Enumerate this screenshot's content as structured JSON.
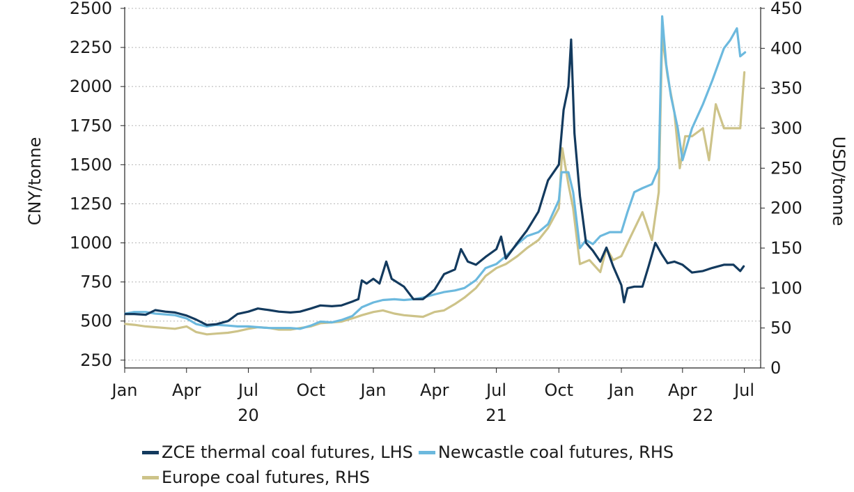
{
  "chart_data": {
    "type": "line",
    "left_axis": {
      "label": "CNY/tonne",
      "ylim": [
        200,
        2500
      ],
      "ticks": [
        250,
        500,
        750,
        1000,
        1250,
        1500,
        1750,
        2000,
        2250,
        2500
      ]
    },
    "right_axis": {
      "label": "USD/tonne",
      "ylim": [
        0,
        450
      ],
      "ticks": [
        0,
        50,
        100,
        150,
        200,
        250,
        300,
        350,
        400,
        450
      ]
    },
    "x_ticks": [
      {
        "date": "2020-01-01",
        "label": "Jan"
      },
      {
        "date": "2020-04-01",
        "label": "Apr"
      },
      {
        "date": "2020-07-01",
        "label": "Jul"
      },
      {
        "date": "2020-10-01",
        "label": "Oct"
      },
      {
        "date": "2021-01-01",
        "label": "Jan"
      },
      {
        "date": "2021-04-01",
        "label": "Apr"
      },
      {
        "date": "2021-07-01",
        "label": "Jul"
      },
      {
        "date": "2021-10-01",
        "label": "Oct"
      },
      {
        "date": "2022-01-01",
        "label": "Jan"
      },
      {
        "date": "2022-04-01",
        "label": "Apr"
      },
      {
        "date": "2022-07-01",
        "label": "Jul"
      }
    ],
    "year_labels": [
      {
        "date": "2020-07-01",
        "label": "20"
      },
      {
        "date": "2021-07-01",
        "label": "21"
      },
      {
        "date": "2022-05-01",
        "label": "22"
      }
    ],
    "xlim": [
      "2020-01-01",
      "2022-07-25"
    ],
    "grid": "horizontal dotted",
    "legend_position": "bottom",
    "series": [
      {
        "name": "ZCE thermal coal futures, LHS",
        "axis": "left",
        "color": "#133a5e",
        "points": [
          [
            "2020-01-02",
            545
          ],
          [
            "2020-01-15",
            545
          ],
          [
            "2020-02-01",
            540
          ],
          [
            "2020-02-15",
            570
          ],
          [
            "2020-03-01",
            560
          ],
          [
            "2020-03-15",
            555
          ],
          [
            "2020-04-01",
            535
          ],
          [
            "2020-04-15",
            510
          ],
          [
            "2020-05-01",
            475
          ],
          [
            "2020-05-15",
            480
          ],
          [
            "2020-06-01",
            500
          ],
          [
            "2020-06-15",
            545
          ],
          [
            "2020-07-01",
            560
          ],
          [
            "2020-07-15",
            580
          ],
          [
            "2020-08-01",
            570
          ],
          [
            "2020-08-15",
            560
          ],
          [
            "2020-09-01",
            555
          ],
          [
            "2020-09-15",
            560
          ],
          [
            "2020-10-01",
            580
          ],
          [
            "2020-10-15",
            600
          ],
          [
            "2020-11-01",
            595
          ],
          [
            "2020-11-15",
            600
          ],
          [
            "2020-12-01",
            625
          ],
          [
            "2020-12-10",
            640
          ],
          [
            "2020-12-15",
            760
          ],
          [
            "2020-12-22",
            740
          ],
          [
            "2021-01-01",
            770
          ],
          [
            "2021-01-10",
            740
          ],
          [
            "2021-01-20",
            880
          ],
          [
            "2021-01-28",
            770
          ],
          [
            "2021-02-15",
            720
          ],
          [
            "2021-03-01",
            640
          ],
          [
            "2021-03-15",
            640
          ],
          [
            "2021-04-01",
            700
          ],
          [
            "2021-04-15",
            800
          ],
          [
            "2021-05-01",
            830
          ],
          [
            "2021-05-10",
            960
          ],
          [
            "2021-05-20",
            880
          ],
          [
            "2021-06-01",
            860
          ],
          [
            "2021-06-15",
            910
          ],
          [
            "2021-07-01",
            960
          ],
          [
            "2021-07-08",
            1040
          ],
          [
            "2021-07-15",
            900
          ],
          [
            "2021-08-01",
            1000
          ],
          [
            "2021-08-15",
            1080
          ],
          [
            "2021-09-01",
            1200
          ],
          [
            "2021-09-15",
            1400
          ],
          [
            "2021-10-01",
            1500
          ],
          [
            "2021-10-08",
            1850
          ],
          [
            "2021-10-15",
            2000
          ],
          [
            "2021-10-19",
            2300
          ],
          [
            "2021-10-24",
            1700
          ],
          [
            "2021-11-01",
            1300
          ],
          [
            "2021-11-10",
            1000
          ],
          [
            "2021-11-20",
            950
          ],
          [
            "2021-12-01",
            880
          ],
          [
            "2021-12-10",
            970
          ],
          [
            "2021-12-20",
            850
          ],
          [
            "2022-01-01",
            730
          ],
          [
            "2022-01-05",
            620
          ],
          [
            "2022-01-10",
            710
          ],
          [
            "2022-01-20",
            720
          ],
          [
            "2022-02-01",
            720
          ],
          [
            "2022-02-10",
            850
          ],
          [
            "2022-02-20",
            1000
          ],
          [
            "2022-03-01",
            930
          ],
          [
            "2022-03-10",
            870
          ],
          [
            "2022-03-20",
            880
          ],
          [
            "2022-04-01",
            860
          ],
          [
            "2022-04-15",
            810
          ],
          [
            "2022-05-01",
            820
          ],
          [
            "2022-05-15",
            840
          ],
          [
            "2022-06-01",
            860
          ],
          [
            "2022-06-15",
            860
          ],
          [
            "2022-06-25",
            820
          ],
          [
            "2022-06-30",
            850
          ]
        ]
      },
      {
        "name": "Newcastle coal futures, RHS",
        "axis": "right",
        "color": "#6cb9de",
        "points": [
          [
            "2020-01-02",
            68
          ],
          [
            "2020-01-15",
            70
          ],
          [
            "2020-02-01",
            70
          ],
          [
            "2020-02-15",
            68
          ],
          [
            "2020-03-01",
            67
          ],
          [
            "2020-03-15",
            66
          ],
          [
            "2020-04-01",
            62
          ],
          [
            "2020-04-15",
            55
          ],
          [
            "2020-05-01",
            52
          ],
          [
            "2020-05-15",
            54
          ],
          [
            "2020-06-01",
            53
          ],
          [
            "2020-06-15",
            52
          ],
          [
            "2020-07-01",
            52
          ],
          [
            "2020-07-15",
            51
          ],
          [
            "2020-08-01",
            50
          ],
          [
            "2020-08-15",
            50
          ],
          [
            "2020-09-01",
            50
          ],
          [
            "2020-09-15",
            49
          ],
          [
            "2020-10-01",
            53
          ],
          [
            "2020-10-15",
            58
          ],
          [
            "2020-11-01",
            57
          ],
          [
            "2020-11-15",
            60
          ],
          [
            "2020-12-01",
            65
          ],
          [
            "2020-12-15",
            76
          ],
          [
            "2021-01-01",
            82
          ],
          [
            "2021-01-15",
            85
          ],
          [
            "2021-02-01",
            86
          ],
          [
            "2021-02-15",
            85
          ],
          [
            "2021-03-01",
            86
          ],
          [
            "2021-03-15",
            88
          ],
          [
            "2021-04-01",
            92
          ],
          [
            "2021-04-15",
            95
          ],
          [
            "2021-05-01",
            97
          ],
          [
            "2021-05-15",
            100
          ],
          [
            "2021-06-01",
            110
          ],
          [
            "2021-06-15",
            125
          ],
          [
            "2021-07-01",
            130
          ],
          [
            "2021-07-15",
            140
          ],
          [
            "2021-08-01",
            155
          ],
          [
            "2021-08-15",
            165
          ],
          [
            "2021-09-01",
            170
          ],
          [
            "2021-09-15",
            180
          ],
          [
            "2021-10-01",
            210
          ],
          [
            "2021-10-05",
            245
          ],
          [
            "2021-10-15",
            245
          ],
          [
            "2021-10-22",
            220
          ],
          [
            "2021-11-01",
            150
          ],
          [
            "2021-11-10",
            160
          ],
          [
            "2021-11-20",
            155
          ],
          [
            "2021-12-01",
            165
          ],
          [
            "2021-12-15",
            170
          ],
          [
            "2022-01-01",
            170
          ],
          [
            "2022-01-10",
            195
          ],
          [
            "2022-01-20",
            220
          ],
          [
            "2022-02-01",
            225
          ],
          [
            "2022-02-15",
            230
          ],
          [
            "2022-02-25",
            250
          ],
          [
            "2022-03-02",
            440
          ],
          [
            "2022-03-08",
            380
          ],
          [
            "2022-03-15",
            340
          ],
          [
            "2022-03-25",
            300
          ],
          [
            "2022-04-01",
            260
          ],
          [
            "2022-04-15",
            300
          ],
          [
            "2022-05-01",
            330
          ],
          [
            "2022-05-15",
            360
          ],
          [
            "2022-06-01",
            400
          ],
          [
            "2022-06-10",
            410
          ],
          [
            "2022-06-20",
            425
          ],
          [
            "2022-06-25",
            390
          ],
          [
            "2022-07-02",
            395
          ]
        ]
      },
      {
        "name": "Europe coal futures, RHS",
        "axis": "right",
        "color": "#cdc389",
        "points": [
          [
            "2020-01-02",
            55
          ],
          [
            "2020-01-15",
            54
          ],
          [
            "2020-02-01",
            52
          ],
          [
            "2020-02-15",
            51
          ],
          [
            "2020-03-01",
            50
          ],
          [
            "2020-03-15",
            49
          ],
          [
            "2020-04-01",
            52
          ],
          [
            "2020-04-15",
            45
          ],
          [
            "2020-05-01",
            42
          ],
          [
            "2020-05-15",
            43
          ],
          [
            "2020-06-01",
            44
          ],
          [
            "2020-06-15",
            46
          ],
          [
            "2020-07-01",
            49
          ],
          [
            "2020-07-15",
            51
          ],
          [
            "2020-08-01",
            50
          ],
          [
            "2020-08-15",
            48
          ],
          [
            "2020-09-01",
            48
          ],
          [
            "2020-09-15",
            50
          ],
          [
            "2020-10-01",
            52
          ],
          [
            "2020-10-15",
            56
          ],
          [
            "2020-11-01",
            57
          ],
          [
            "2020-11-15",
            58
          ],
          [
            "2020-12-01",
            62
          ],
          [
            "2020-12-15",
            66
          ],
          [
            "2021-01-01",
            70
          ],
          [
            "2021-01-15",
            72
          ],
          [
            "2021-02-01",
            68
          ],
          [
            "2021-02-15",
            66
          ],
          [
            "2021-03-01",
            65
          ],
          [
            "2021-03-15",
            64
          ],
          [
            "2021-04-01",
            70
          ],
          [
            "2021-04-15",
            72
          ],
          [
            "2021-05-01",
            80
          ],
          [
            "2021-05-15",
            88
          ],
          [
            "2021-06-01",
            100
          ],
          [
            "2021-06-15",
            115
          ],
          [
            "2021-07-01",
            125
          ],
          [
            "2021-07-15",
            130
          ],
          [
            "2021-08-01",
            140
          ],
          [
            "2021-08-15",
            150
          ],
          [
            "2021-09-01",
            160
          ],
          [
            "2021-09-15",
            175
          ],
          [
            "2021-10-01",
            200
          ],
          [
            "2021-10-06",
            275
          ],
          [
            "2021-10-15",
            230
          ],
          [
            "2021-10-22",
            200
          ],
          [
            "2021-11-01",
            130
          ],
          [
            "2021-11-15",
            135
          ],
          [
            "2021-12-01",
            120
          ],
          [
            "2021-12-10",
            150
          ],
          [
            "2021-12-20",
            135
          ],
          [
            "2022-01-01",
            140
          ],
          [
            "2022-01-15",
            165
          ],
          [
            "2022-02-01",
            195
          ],
          [
            "2022-02-15",
            160
          ],
          [
            "2022-02-25",
            220
          ],
          [
            "2022-03-02",
            415
          ],
          [
            "2022-03-10",
            365
          ],
          [
            "2022-03-20",
            320
          ],
          [
            "2022-03-28",
            250
          ],
          [
            "2022-04-05",
            290
          ],
          [
            "2022-04-15",
            290
          ],
          [
            "2022-05-01",
            300
          ],
          [
            "2022-05-10",
            260
          ],
          [
            "2022-05-20",
            330
          ],
          [
            "2022-06-01",
            300
          ],
          [
            "2022-06-15",
            300
          ],
          [
            "2022-06-25",
            300
          ],
          [
            "2022-07-01",
            370
          ]
        ]
      }
    ]
  }
}
